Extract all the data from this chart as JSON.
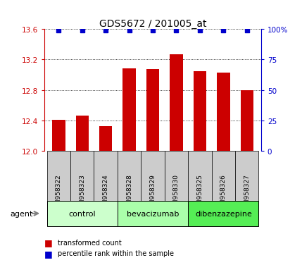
{
  "title": "GDS5672 / 201005_at",
  "categories": [
    "GSM958322",
    "GSM958323",
    "GSM958324",
    "GSM958328",
    "GSM958329",
    "GSM958330",
    "GSM958325",
    "GSM958326",
    "GSM958327"
  ],
  "bar_values": [
    12.41,
    12.46,
    12.33,
    13.08,
    13.07,
    13.27,
    13.05,
    13.03,
    12.8
  ],
  "percentile_values": [
    99,
    99,
    99,
    99,
    99,
    99,
    99,
    99,
    99
  ],
  "bar_color": "#cc0000",
  "dot_color": "#0000cc",
  "ylim_left": [
    12.0,
    13.6
  ],
  "ylim_right": [
    0,
    100
  ],
  "yticks_left": [
    12.0,
    12.4,
    12.8,
    13.2,
    13.6
  ],
  "yticks_right": [
    0,
    25,
    50,
    75,
    100
  ],
  "ytick_labels_right": [
    "0",
    "25",
    "50",
    "75",
    "100%"
  ],
  "groups": [
    {
      "label": "control",
      "indices": [
        0,
        1,
        2
      ],
      "color": "#ccffcc"
    },
    {
      "label": "bevacizumab",
      "indices": [
        3,
        4,
        5
      ],
      "color": "#aaffaa"
    },
    {
      "label": "dibenzazepine",
      "indices": [
        6,
        7,
        8
      ],
      "color": "#55ee55"
    }
  ],
  "agent_label": "agent",
  "legend_bar_label": "transformed count",
  "legend_dot_label": "percentile rank within the sample",
  "title_fontsize": 10,
  "tick_fontsize": 7.5,
  "label_fontsize": 7,
  "bar_width": 0.55
}
